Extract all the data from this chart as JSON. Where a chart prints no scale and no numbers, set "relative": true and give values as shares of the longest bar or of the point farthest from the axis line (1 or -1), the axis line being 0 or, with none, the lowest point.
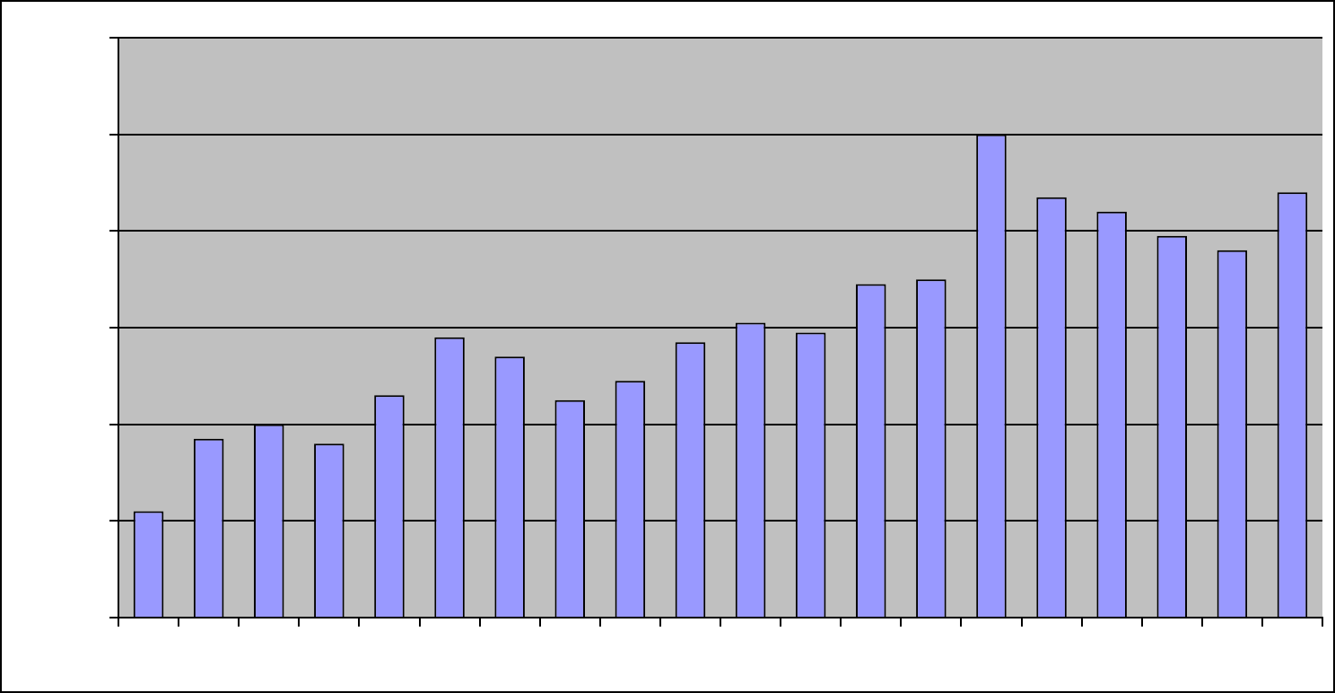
{
  "chart_data": {
    "type": "bar",
    "relative": true,
    "grid": "y",
    "color": "#9999ff",
    "categories": [
      null,
      null,
      null,
      null,
      null,
      null,
      null,
      null,
      null,
      null,
      null,
      null,
      null,
      null,
      null,
      null,
      null,
      null,
      null,
      null
    ],
    "values": [
      0.22,
      0.37,
      0.4,
      0.36,
      0.46,
      0.58,
      0.54,
      0.45,
      0.49,
      0.57,
      0.61,
      0.59,
      0.69,
      0.7,
      1,
      0.87,
      0.84,
      0.79,
      0.76,
      0.88
    ]
  }
}
